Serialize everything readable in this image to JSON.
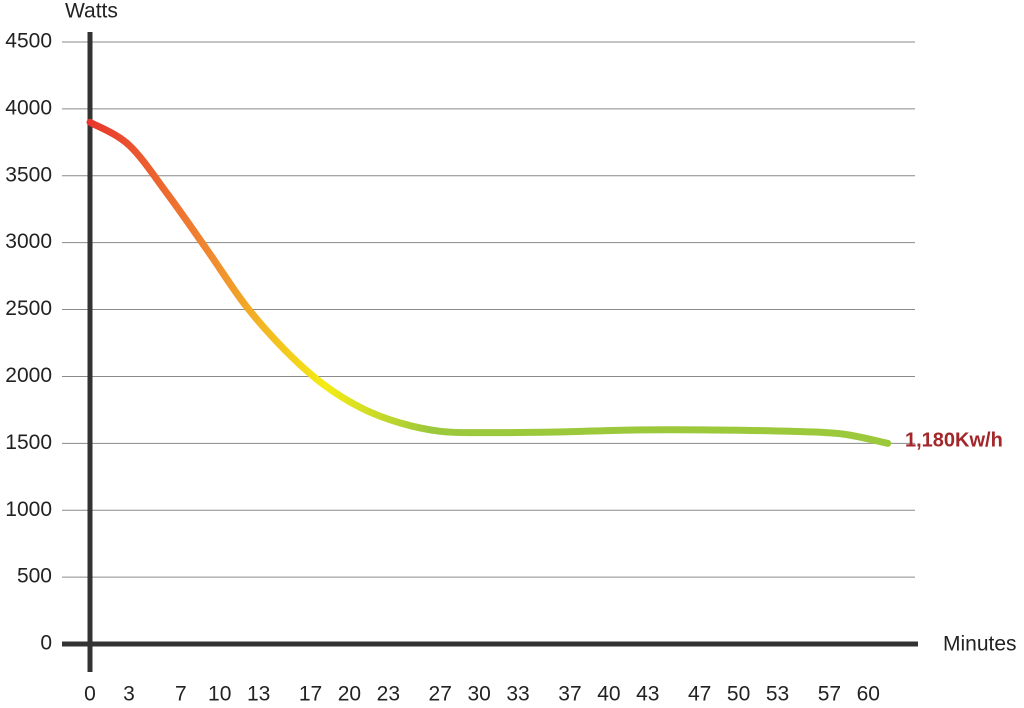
{
  "chart_data": {
    "type": "line",
    "y_label": "Watts",
    "x_label": "Minutes",
    "annotation": "1,180Kw/h",
    "x": [
      0,
      3,
      6,
      9,
      12,
      15,
      18,
      21,
      24,
      27,
      30,
      36,
      42,
      48,
      54,
      58,
      61.5
    ],
    "series": [
      {
        "name": null,
        "colors": [
          "#e8362e",
          "#f08a30",
          "#f5ec14",
          "#9cc83c"
        ],
        "values": [
          3900,
          3730,
          3360,
          2950,
          2530,
          2200,
          1940,
          1760,
          1650,
          1590,
          1580,
          1585,
          1600,
          1600,
          1590,
          1570,
          1500
        ]
      }
    ],
    "xlim": [
      0,
      63.6
    ],
    "xticks": [
      0,
      3,
      7,
      10,
      13,
      17,
      20,
      23,
      27,
      30,
      33,
      37,
      40,
      43,
      47,
      50,
      53,
      57,
      60
    ],
    "ylim": [
      0,
      4500
    ],
    "yticks": [
      0,
      500,
      1000,
      1500,
      2000,
      2500,
      3000,
      3500,
      4000,
      4500
    ],
    "grid": true
  }
}
